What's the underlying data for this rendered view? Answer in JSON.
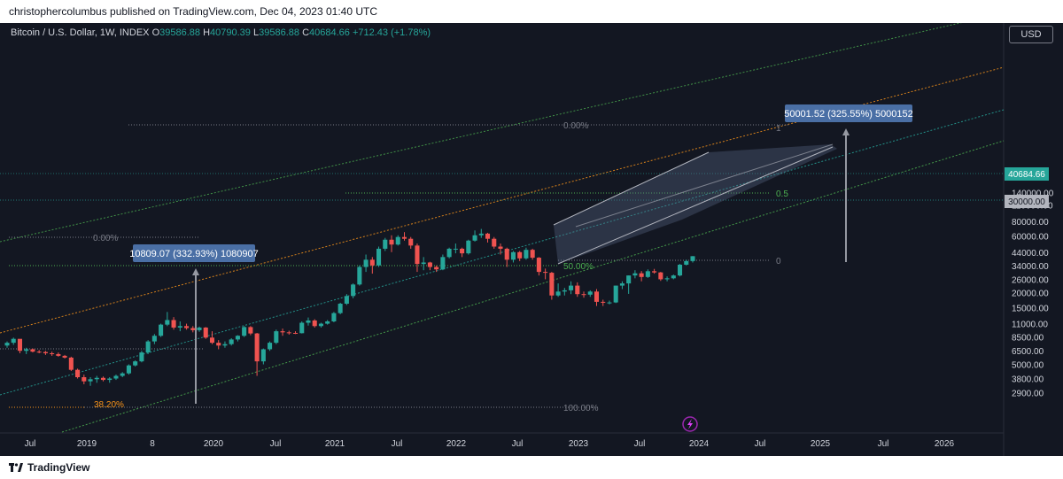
{
  "header": {
    "publish_text": "christophercolumbus published on TradingView.com, Dec 04, 2023 01:40 UTC"
  },
  "legend": {
    "symbol": "Bitcoin / U.S. Dollar, 1W, INDEX",
    "open_label": "O",
    "open": "39586.88",
    "high_label": "H",
    "high": "40790.39",
    "low_label": "L",
    "low": "39586.88",
    "close_label": "C",
    "close": "40684.66",
    "change": "+712.43 (+1.78%)"
  },
  "currency": "USD",
  "footer": {
    "brand": "TradingView"
  },
  "colors": {
    "up": "#26a69a",
    "down": "#ef5350",
    "orange": "#f7931a",
    "green": "#4caf50",
    "teal": "#26a69a",
    "label_bg": "#4a6fa5"
  },
  "chart_data": {
    "type": "candlestick",
    "y_scale": "log",
    "y_ticks": [
      "140000.00",
      "110000.00",
      "80000.00",
      "60000.00",
      "44000.00",
      "34000.00",
      "26000.00",
      "20000.00",
      "15000.00",
      "11000.00",
      "8500.00",
      "6500.00",
      "5000.00",
      "3800.00",
      "2900.00"
    ],
    "x_ticks": [
      "Jul",
      "2019",
      "8",
      "2020",
      "Jul",
      "2021",
      "Jul",
      "2022",
      "Jul",
      "2023",
      "Jul",
      "2024",
      "Jul",
      "2025",
      "Jul",
      "2026"
    ],
    "price_labels": [
      {
        "text": "40684.66",
        "kind": "current"
      },
      {
        "text": "30000.00",
        "kind": "level"
      }
    ],
    "measures": [
      {
        "text": "10809.07 (332.93%) 1080907"
      },
      {
        "text": "50001.52 (325.55%) 5000152"
      }
    ],
    "fib_labels": [
      "0.00%",
      "0.00%",
      "100.00%",
      "38.20%",
      "50.00%",
      "1",
      "0.5",
      "0"
    ],
    "series": [
      {
        "values": [
          [
            7200,
            7800,
            6900,
            7600
          ],
          [
            7600,
            8400,
            7300,
            8200
          ],
          [
            8200,
            8100,
            6200,
            6500
          ],
          [
            6500,
            6900,
            6100,
            6700
          ],
          [
            6700,
            6800,
            6300,
            6400
          ],
          [
            6400,
            6600,
            6200,
            6350
          ],
          [
            6350,
            6500,
            6000,
            6200
          ],
          [
            6200,
            6400,
            5900,
            6100
          ],
          [
            6100,
            6300,
            5800,
            5900
          ],
          [
            5900,
            6000,
            5600,
            5700
          ],
          [
            5700,
            5800,
            4400,
            4500
          ],
          [
            4500,
            4600,
            3800,
            3900
          ],
          [
            3900,
            4100,
            3400,
            3600
          ],
          [
            3600,
            3900,
            3300,
            3750
          ],
          [
            3750,
            4000,
            3500,
            3850
          ],
          [
            3850,
            3950,
            3600,
            3700
          ],
          [
            3700,
            3900,
            3500,
            3800
          ],
          [
            3800,
            4100,
            3700,
            4000
          ],
          [
            4000,
            4300,
            3900,
            4200
          ],
          [
            4200,
            5000,
            4100,
            4900
          ],
          [
            4900,
            5400,
            4800,
            5300
          ],
          [
            5300,
            6500,
            5200,
            6300
          ],
          [
            6300,
            8000,
            6100,
            7800
          ],
          [
            7800,
            9000,
            7400,
            8700
          ],
          [
            8700,
            11000,
            8500,
            10800
          ],
          [
            10800,
            13800,
            10500,
            11800
          ],
          [
            11800,
            12500,
            9800,
            10200
          ],
          [
            10200,
            11500,
            9500,
            10500
          ],
          [
            10500,
            11000,
            9800,
            10100
          ],
          [
            10100,
            10500,
            9300,
            9700
          ],
          [
            9700,
            10400,
            9400,
            10200
          ],
          [
            10200,
            10300,
            8200,
            8400
          ],
          [
            8400,
            9500,
            7400,
            7600
          ],
          [
            7600,
            8000,
            6700,
            7200
          ],
          [
            7200,
            7800,
            6900,
            7400
          ],
          [
            7400,
            8300,
            7200,
            8100
          ],
          [
            8100,
            8800,
            7800,
            8700
          ],
          [
            8700,
            10500,
            8500,
            10300
          ],
          [
            10300,
            10500,
            8800,
            9100
          ],
          [
            9100,
            9200,
            4000,
            5300
          ],
          [
            5300,
            6800,
            5000,
            6700
          ],
          [
            6700,
            7800,
            6500,
            7600
          ],
          [
            7600,
            9800,
            7400,
            9500
          ],
          [
            9500,
            10000,
            8700,
            9300
          ],
          [
            9300,
            9600,
            8900,
            9200
          ],
          [
            9200,
            9500,
            9000,
            9150
          ],
          [
            9150,
            11500,
            9100,
            11200
          ],
          [
            11200,
            12400,
            10600,
            11700
          ],
          [
            11700,
            12000,
            10200,
            10500
          ],
          [
            10500,
            11200,
            10200,
            11000
          ],
          [
            11000,
            11800,
            10800,
            11500
          ],
          [
            11500,
            13800,
            11300,
            13500
          ],
          [
            13500,
            16500,
            13200,
            16200
          ],
          [
            16200,
            19500,
            15800,
            18800
          ],
          [
            18800,
            24000,
            18000,
            23500
          ],
          [
            23500,
            34000,
            23000,
            33000
          ],
          [
            33000,
            42000,
            30000,
            38000
          ],
          [
            38000,
            40000,
            29000,
            34000
          ],
          [
            34000,
            49000,
            33000,
            47000
          ],
          [
            47000,
            58000,
            45000,
            56000
          ],
          [
            56000,
            61000,
            44000,
            51000
          ],
          [
            51000,
            61000,
            50000,
            59000
          ],
          [
            59000,
            64800,
            55000,
            57000
          ],
          [
            57000,
            59000,
            47000,
            50000
          ],
          [
            50000,
            52000,
            30000,
            35000
          ],
          [
            35000,
            40000,
            31000,
            36000
          ],
          [
            36000,
            36500,
            31000,
            33000
          ],
          [
            33000,
            34000,
            30000,
            31500
          ],
          [
            31500,
            42000,
            31000,
            40000
          ],
          [
            40000,
            48000,
            39000,
            47000
          ],
          [
            47000,
            52000,
            43000,
            47000
          ],
          [
            47000,
            48000,
            40000,
            43000
          ],
          [
            43000,
            56000,
            42000,
            55000
          ],
          [
            55000,
            67000,
            54000,
            61000
          ],
          [
            61000,
            69000,
            58000,
            63000
          ],
          [
            63000,
            64000,
            53000,
            57000
          ],
          [
            57000,
            59000,
            47000,
            49000
          ],
          [
            49000,
            52000,
            42000,
            47000
          ],
          [
            47000,
            48000,
            33000,
            38000
          ],
          [
            38000,
            45000,
            36000,
            44000
          ],
          [
            44000,
            45000,
            37000,
            39000
          ],
          [
            39000,
            48000,
            38000,
            46000
          ],
          [
            46000,
            47000,
            38000,
            39500
          ],
          [
            39500,
            40000,
            28000,
            30000
          ],
          [
            30000,
            32000,
            26000,
            29500
          ],
          [
            29500,
            30000,
            17500,
            19000
          ],
          [
            19000,
            24000,
            18500,
            20500
          ],
          [
            20500,
            22000,
            19000,
            21000
          ],
          [
            21000,
            25000,
            19500,
            23000
          ],
          [
            23000,
            24500,
            18500,
            19500
          ],
          [
            19500,
            20500,
            18200,
            19300
          ],
          [
            19300,
            21000,
            18500,
            20500
          ],
          [
            20500,
            21500,
            15500,
            16800
          ],
          [
            16800,
            17500,
            15500,
            16500
          ],
          [
            16500,
            17200,
            16000,
            16600
          ],
          [
            16600,
            23000,
            16400,
            23000
          ],
          [
            23000,
            25000,
            21500,
            24000
          ],
          [
            24000,
            28000,
            19600,
            28000
          ],
          [
            28000,
            31000,
            26500,
            29200
          ],
          [
            29200,
            30500,
            25000,
            27200
          ],
          [
            27200,
            31500,
            26700,
            30400
          ],
          [
            30400,
            31800,
            29000,
            29700
          ],
          [
            29700,
            30000,
            25200,
            26000
          ],
          [
            26000,
            27500,
            25000,
            26500
          ],
          [
            26500,
            28500,
            26000,
            28000
          ],
          [
            28000,
            35000,
            27500,
            34500
          ],
          [
            34500,
            38000,
            34000,
            37000
          ],
          [
            37000,
            40790,
            36000,
            40684
          ]
        ]
      }
    ]
  }
}
